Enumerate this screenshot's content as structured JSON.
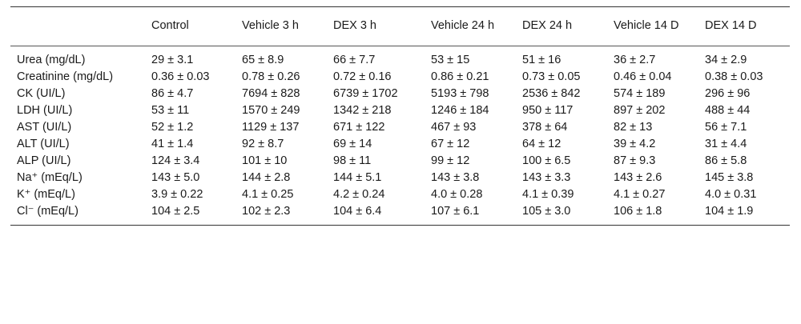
{
  "table": {
    "headers": [
      "",
      "Control",
      "Vehicle 3 h",
      "DEX 3 h",
      "Vehicle 24 h",
      "DEX 24 h",
      "Vehicle 14 D",
      "DEX 14 D"
    ],
    "rows": [
      {
        "label": "Urea (mg/dL)",
        "cells": [
          "29 ± 3.1",
          "65 ± 8.9",
          "66 ± 7.7",
          "53 ± 15",
          "51 ± 16",
          "36 ± 2.7",
          "34 ± 2.9"
        ]
      },
      {
        "label": "Creatinine (mg/dL)",
        "cells": [
          "0.36 ± 0.03",
          "0.78 ± 0.26",
          "0.72 ± 0.16",
          "0.86 ± 0.21",
          "0.73 ± 0.05",
          "0.46 ± 0.04",
          "0.38 ± 0.03"
        ]
      },
      {
        "label": "CK (UI/L)",
        "cells": [
          "86 ± 4.7",
          "7694 ± 828",
          "6739 ± 1702",
          "5193 ± 798",
          "2536 ± 842",
          "574 ± 189",
          "296 ± 96"
        ]
      },
      {
        "label": "LDH (UI/L)",
        "cells": [
          "53 ± 11",
          "1570 ± 249",
          "1342 ± 218",
          "1246 ± 184",
          "950 ± 117",
          "897 ± 202",
          "488 ± 44"
        ]
      },
      {
        "label": "AST (UI/L)",
        "cells": [
          "52 ± 1.2",
          "1129 ± 137",
          "671 ± 122",
          "467 ± 93",
          "378 ± 64",
          "82 ± 13",
          "56 ± 7.1"
        ]
      },
      {
        "label": "ALT (UI/L)",
        "cells": [
          "41 ± 1.4",
          "92 ± 8.7",
          "69 ± 14",
          "67 ± 12",
          "64 ± 12",
          "39 ± 4.2",
          "31 ± 4.4"
        ]
      },
      {
        "label": "ALP (UI/L)",
        "cells": [
          "124 ± 3.4",
          "101 ± 10",
          "98 ± 11",
          "99 ± 12",
          "100 ± 6.5",
          "87 ± 9.3",
          "86 ± 5.8"
        ]
      },
      {
        "label": "Na⁺ (mEq/L)",
        "cells": [
          "143 ± 5.0",
          "144 ± 2.8",
          "144 ± 5.1",
          "143 ± 3.8",
          "143 ± 3.3",
          "143 ± 2.6",
          "145 ± 3.8"
        ]
      },
      {
        "label": "K⁺ (mEq/L)",
        "cells": [
          "3.9 ± 0.22",
          "4.1 ± 0.25",
          "4.2 ± 0.24",
          "4.0 ± 0.28",
          "4.1 ± 0.39",
          "4.1 ± 0.27",
          "4.0 ± 0.31"
        ]
      },
      {
        "label": "Cl⁻ (mEq/L)",
        "cells": [
          "104 ± 2.5",
          "102 ± 2.3",
          "104 ± 6.4",
          "107 ± 6.1",
          "105 ± 3.0",
          "106 ± 1.8",
          "104 ± 1.9"
        ]
      }
    ]
  }
}
